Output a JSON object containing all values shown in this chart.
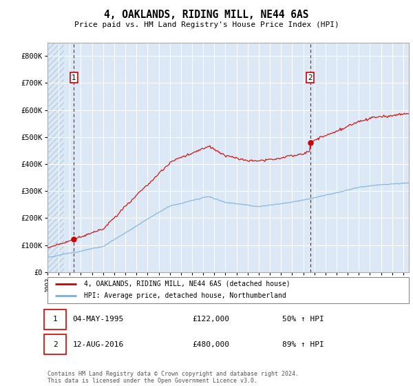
{
  "title": "4, OAKLANDS, RIDING MILL, NE44 6AS",
  "subtitle": "Price paid vs. HM Land Registry's House Price Index (HPI)",
  "ylim": [
    0,
    850000
  ],
  "yticks": [
    0,
    100000,
    200000,
    300000,
    400000,
    500000,
    600000,
    700000,
    800000
  ],
  "ytick_labels": [
    "£0",
    "£100K",
    "£200K",
    "£300K",
    "£400K",
    "£500K",
    "£600K",
    "£700K",
    "£800K"
  ],
  "hpi_color": "#7bafd4",
  "price_color": "#cc0000",
  "bg_color": "#dce8f5",
  "hatch_color": "#b8cfe0",
  "grid_color": "#ffffff",
  "vline_color": "#cc0000",
  "marker1_date": 1995.37,
  "marker1_price": 122000,
  "marker2_date": 2016.62,
  "marker2_price": 480000,
  "legend_label1": "4, OAKLANDS, RIDING MILL, NE44 6AS (detached house)",
  "legend_label2": "HPI: Average price, detached house, Northumberland",
  "footnote": "Contains HM Land Registry data © Crown copyright and database right 2024.\nThis data is licensed under the Open Government Licence v3.0.",
  "xstart": 1993,
  "xend": 2026
}
